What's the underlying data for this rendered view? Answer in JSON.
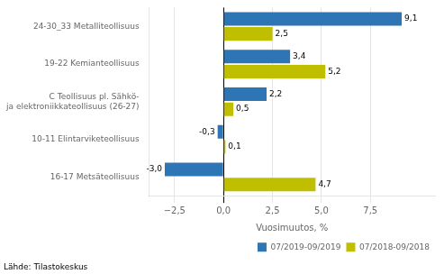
{
  "chart_data": {
    "type": "bar",
    "orientation": "horizontal",
    "categories": [
      "24-30_33 Metalliteollisuus",
      "19-22 Kemianteollisuus",
      "C Teollisuus pl. Sähkö-\nja elektroniikkateollisuus (26-27)",
      "10-11 Elintarviketeollisuus",
      "16-17 Metsäteollisuus"
    ],
    "series": [
      {
        "name": "07/2019-09/2019",
        "color": "#2E75B6",
        "values": [
          9.1,
          3.4,
          2.2,
          -0.3,
          -3.0
        ],
        "value_labels": [
          "9,1",
          "3,4",
          "2,2",
          "-0,3",
          "-3,0"
        ]
      },
      {
        "name": "07/2018-09/2018",
        "color": "#BFBF00",
        "values": [
          2.5,
          5.2,
          0.5,
          0.1,
          4.7
        ],
        "value_labels": [
          "2,5",
          "5,2",
          "0,5",
          "0,1",
          "4,7"
        ]
      }
    ],
    "xlabel": "Vuosimuutos, %",
    "xlim": [
      -3.8,
      10.8
    ],
    "xticks": [
      {
        "value": -2.5,
        "label": "−2,5"
      },
      {
        "value": 0.0,
        "label": "0,0"
      },
      {
        "value": 2.5,
        "label": "2,5"
      },
      {
        "value": 5.0,
        "label": "5,0"
      },
      {
        "value": 7.5,
        "label": "7,5"
      }
    ],
    "grid": true,
    "legend": "lower right",
    "data_labels": true,
    "annotations": [
      "Lähde: Tilastokeskus"
    ]
  }
}
